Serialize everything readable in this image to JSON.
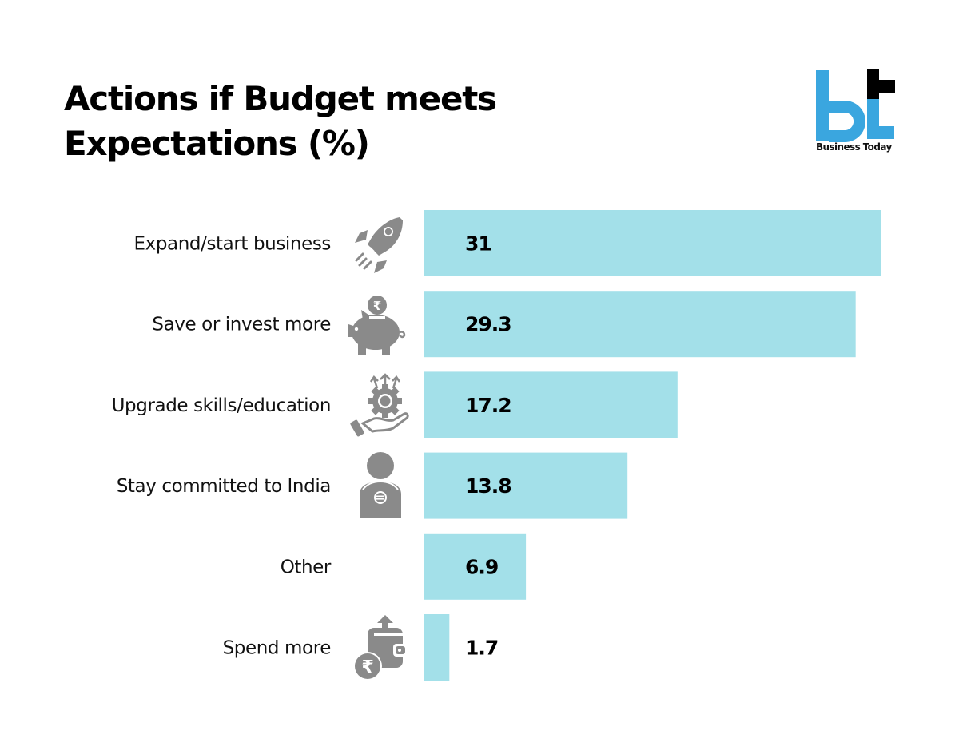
{
  "title_lines": [
    "Actions if Budget meets",
    "Expectations (%)"
  ],
  "brand": {
    "name": "Business Today",
    "logo_icon": "bt-logo-icon",
    "primary_color": "#3aa6df",
    "secondary_color": "#000000"
  },
  "bar_color": "#a3e0e9",
  "icon_color": "#8a8a8a",
  "chart_data": {
    "type": "bar",
    "orientation": "horizontal",
    "title": "Actions if Budget meets Expectations (%)",
    "xlabel": "",
    "ylabel": "",
    "unit": "%",
    "xlim": [
      0,
      31
    ],
    "grid": false,
    "legend": "none",
    "categories": [
      "Expand/start business",
      "Save or invest more",
      "Upgrade skills/education",
      "Stay committed to India",
      "Other",
      "Spend more"
    ],
    "values": [
      31,
      29.3,
      17.2,
      13.8,
      6.9,
      1.7
    ],
    "value_labels": [
      "31",
      "29.3",
      "17.2",
      "13.8",
      "6.9",
      "1.7"
    ],
    "icons": [
      "rocket-icon",
      "piggy-bank-rupee-icon",
      "hand-gear-growth-icon",
      "person-india-badge-icon",
      "",
      "wallet-rupee-spend-icon"
    ]
  }
}
